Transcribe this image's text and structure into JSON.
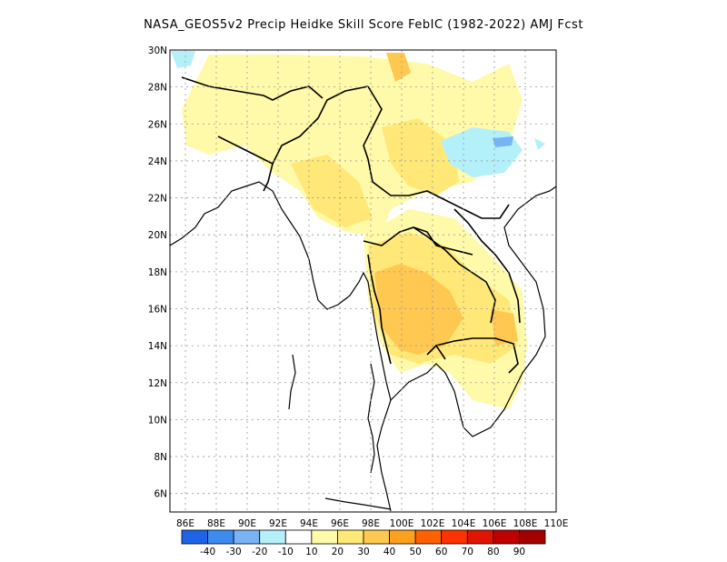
{
  "title": "NASA_GEOS5v2 Precip Heidke Skill Score FebIC (1982-2022) AMJ Fcst",
  "lat_labels": [
    "30N",
    "28N",
    "26N",
    "24N",
    "22N",
    "20N",
    "18N",
    "16N",
    "14N",
    "12N",
    "10N",
    "8N",
    "6N"
  ],
  "lon_labels": [
    "86E",
    "88E",
    "90E",
    "92E",
    "94E",
    "96E",
    "98E",
    "100E",
    "102E",
    "104E",
    "106E",
    "108E",
    "110E"
  ],
  "colorbar": {
    "labels": [
      "-40",
      "-30",
      "-20",
      "-10",
      "10",
      "20",
      "30",
      "40",
      "50",
      "60",
      "70",
      "80",
      "90"
    ],
    "colors": [
      "#1e64e6",
      "#3c8cf0",
      "#78b4f5",
      "#b4f0fa",
      "#ffffff",
      "#fffaaa",
      "#ffe878",
      "#ffc850",
      "#ffa01e",
      "#ff6000",
      "#ff3200",
      "#e11400",
      "#c00000",
      "#a50000"
    ]
  },
  "colors": {
    "land": "#ffffff",
    "coast": "#000000",
    "grid": "#999999"
  }
}
